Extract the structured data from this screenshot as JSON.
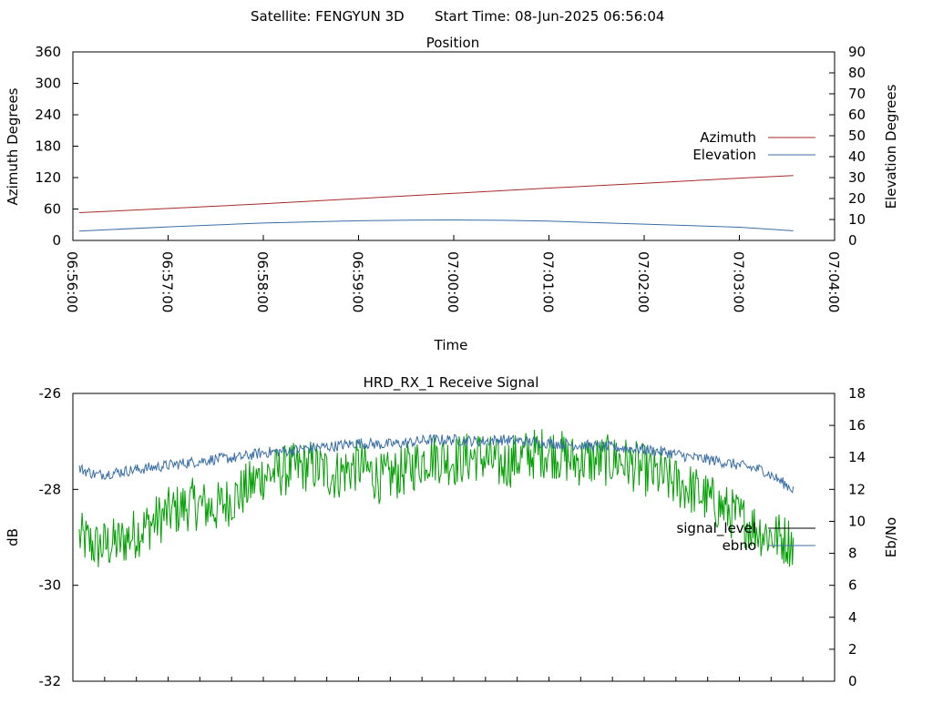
{
  "header": {
    "satellite_text": "Satellite: FENGYUN 3D",
    "start_time_text": "Start Time: 08-Jun-2025 06:56:04"
  },
  "chart_data": [
    {
      "type": "line",
      "title": "Position",
      "xlabel": "Time",
      "ylabel": "Azimuth Degrees",
      "y2label": "Elevation Degrees",
      "xlim": [
        "06:56:00",
        "07:04:00"
      ],
      "x_ticks": [
        "06:56:00",
        "06:57:00",
        "06:58:00",
        "06:59:00",
        "07:00:00",
        "07:01:00",
        "07:02:00",
        "07:03:00",
        "07:04:00"
      ],
      "ylim": [
        0,
        360
      ],
      "y_ticks": [
        "0",
        "60",
        "120",
        "180",
        "240",
        "300",
        "360"
      ],
      "y2lim": [
        0,
        90
      ],
      "y2_ticks": [
        "0",
        "10",
        "20",
        "30",
        "40",
        "50",
        "60",
        "70",
        "80",
        "90"
      ],
      "legend_position": "right",
      "grid": false,
      "series": [
        {
          "name": "Azimuth",
          "axis": "left",
          "color": "#a52a2a",
          "x": [
            "06:56:04",
            "06:57:00",
            "06:58:00",
            "06:59:00",
            "07:00:00",
            "07:01:00",
            "07:02:00",
            "07:03:00",
            "07:03:34"
          ],
          "values": [
            53,
            61,
            70,
            80,
            90,
            100,
            109,
            119,
            124
          ]
        },
        {
          "name": "Elevation",
          "axis": "right",
          "color": "#3a6ea5",
          "x": [
            "06:56:04",
            "06:57:00",
            "06:58:00",
            "06:59:00",
            "06:59:30",
            "07:00:00",
            "07:00:30",
            "07:01:00",
            "07:02:00",
            "07:03:00",
            "07:03:34"
          ],
          "values": [
            4.5,
            6.5,
            8.3,
            9.4,
            9.7,
            9.8,
            9.6,
            9.2,
            7.8,
            6.3,
            4.6
          ]
        }
      ]
    },
    {
      "type": "line",
      "title": "HRD_RX_1 Receive Signal",
      "ylabel": "dB",
      "y2label": "Eb/No",
      "xlim": [
        "06:56:00",
        "07:04:00"
      ],
      "ylim": [
        -32,
        -26
      ],
      "y_ticks": [
        "-32",
        "-30",
        "-28",
        "-26"
      ],
      "y2lim": [
        0,
        18
      ],
      "y2_ticks": [
        "0",
        "2",
        "4",
        "6",
        "8",
        "10",
        "12",
        "14",
        "16",
        "18"
      ],
      "legend_position": "right",
      "grid": false,
      "series": [
        {
          "name": "signal_level",
          "axis": "left",
          "color": "#00a000",
          "x": [
            "06:56:04",
            "06:56:15",
            "06:56:30",
            "06:56:45",
            "06:57:00",
            "06:57:15",
            "06:57:30",
            "06:57:45",
            "06:58:00",
            "06:58:15",
            "06:58:30",
            "06:58:45",
            "06:59:00",
            "06:59:15",
            "06:59:30",
            "06:59:45",
            "07:00:00",
            "07:00:15",
            "07:00:30",
            "07:00:45",
            "07:01:00",
            "07:01:15",
            "07:01:30",
            "07:01:45",
            "07:02:00",
            "07:02:15",
            "07:02:30",
            "07:02:45",
            "07:03:00",
            "07:03:15",
            "07:03:34"
          ],
          "values": [
            -29.0,
            -29.2,
            -29.1,
            -28.8,
            -28.5,
            -28.3,
            -28.4,
            -28.1,
            -27.7,
            -27.6,
            -27.5,
            -27.7,
            -27.5,
            -27.8,
            -27.6,
            -27.3,
            -27.4,
            -27.3,
            -27.5,
            -27.3,
            -27.2,
            -27.4,
            -27.4,
            -27.4,
            -27.6,
            -27.8,
            -28.0,
            -28.3,
            -28.6,
            -28.9,
            -29.1
          ]
        },
        {
          "name": "ebno",
          "axis": "right",
          "color": "#3a6ea5",
          "x": [
            "06:56:04",
            "06:56:15",
            "06:56:30",
            "06:56:45",
            "06:57:00",
            "06:57:15",
            "06:57:30",
            "06:57:45",
            "06:58:00",
            "06:58:15",
            "06:58:30",
            "06:58:45",
            "06:59:00",
            "06:59:15",
            "06:59:30",
            "06:59:45",
            "07:00:00",
            "07:00:15",
            "07:00:30",
            "07:00:45",
            "07:01:00",
            "07:01:15",
            "07:01:30",
            "07:01:45",
            "07:02:00",
            "07:02:15",
            "07:02:30",
            "07:02:45",
            "07:03:00",
            "07:03:15",
            "07:03:34"
          ],
          "values": [
            13.3,
            12.9,
            13.1,
            13.3,
            13.5,
            13.7,
            13.9,
            14.0,
            14.3,
            14.4,
            14.6,
            14.7,
            14.9,
            14.8,
            14.9,
            15.1,
            15.1,
            15.0,
            15.1,
            15.0,
            14.9,
            14.8,
            14.7,
            14.6,
            14.5,
            14.3,
            14.0,
            13.8,
            13.5,
            13.2,
            12.0
          ]
        }
      ]
    }
  ]
}
